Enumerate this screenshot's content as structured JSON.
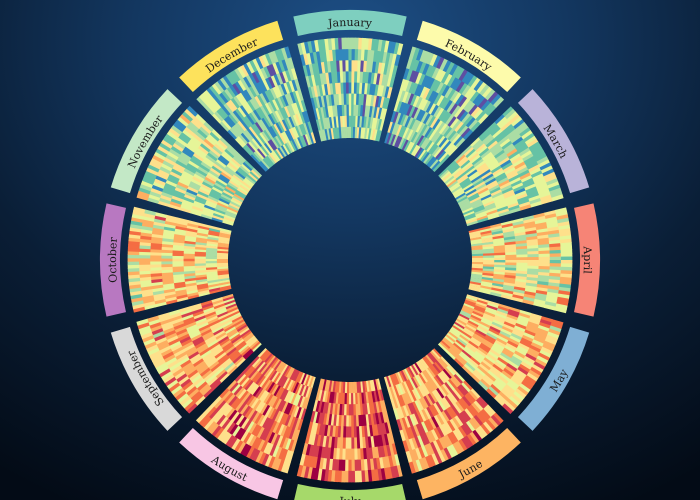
{
  "chart_data": {
    "type": "heatmap",
    "layout": "radial",
    "title": "",
    "color_scale": [
      "#5e4fa2",
      "#3288bd",
      "#66c2a5",
      "#abdda4",
      "#e6f598",
      "#fee08b",
      "#fdae61",
      "#f46d43",
      "#d53e4f",
      "#9e0142"
    ],
    "months": [
      {
        "name": "January",
        "color": "#7ecfbf",
        "rows": 9,
        "cols": 31,
        "level": 0.3
      },
      {
        "name": "February",
        "color": "#fdfbab",
        "rows": 9,
        "cols": 28,
        "level": 0.28
      },
      {
        "name": "March",
        "color": "#b9b3d9",
        "rows": 9,
        "cols": 31,
        "level": 0.38
      },
      {
        "name": "April",
        "color": "#f68476",
        "rows": 9,
        "cols": 30,
        "level": 0.5
      },
      {
        "name": "May",
        "color": "#7fafd4",
        "rows": 9,
        "cols": 31,
        "level": 0.6
      },
      {
        "name": "June",
        "color": "#fdb462",
        "rows": 9,
        "cols": 30,
        "level": 0.68
      },
      {
        "name": "July",
        "color": "#a6d96a",
        "rows": 9,
        "cols": 31,
        "level": 0.74
      },
      {
        "name": "August",
        "color": "#f8c6e4",
        "rows": 9,
        "cols": 31,
        "level": 0.72
      },
      {
        "name": "September",
        "color": "#d9d9d9",
        "rows": 9,
        "cols": 30,
        "level": 0.64
      },
      {
        "name": "October",
        "color": "#b878c1",
        "rows": 9,
        "cols": 31,
        "level": 0.55
      },
      {
        "name": "November",
        "color": "#c3e8c6",
        "rows": 9,
        "cols": 30,
        "level": 0.4
      },
      {
        "name": "December",
        "color": "#fde25c",
        "rows": 9,
        "cols": 31,
        "level": 0.3
      }
    ]
  }
}
